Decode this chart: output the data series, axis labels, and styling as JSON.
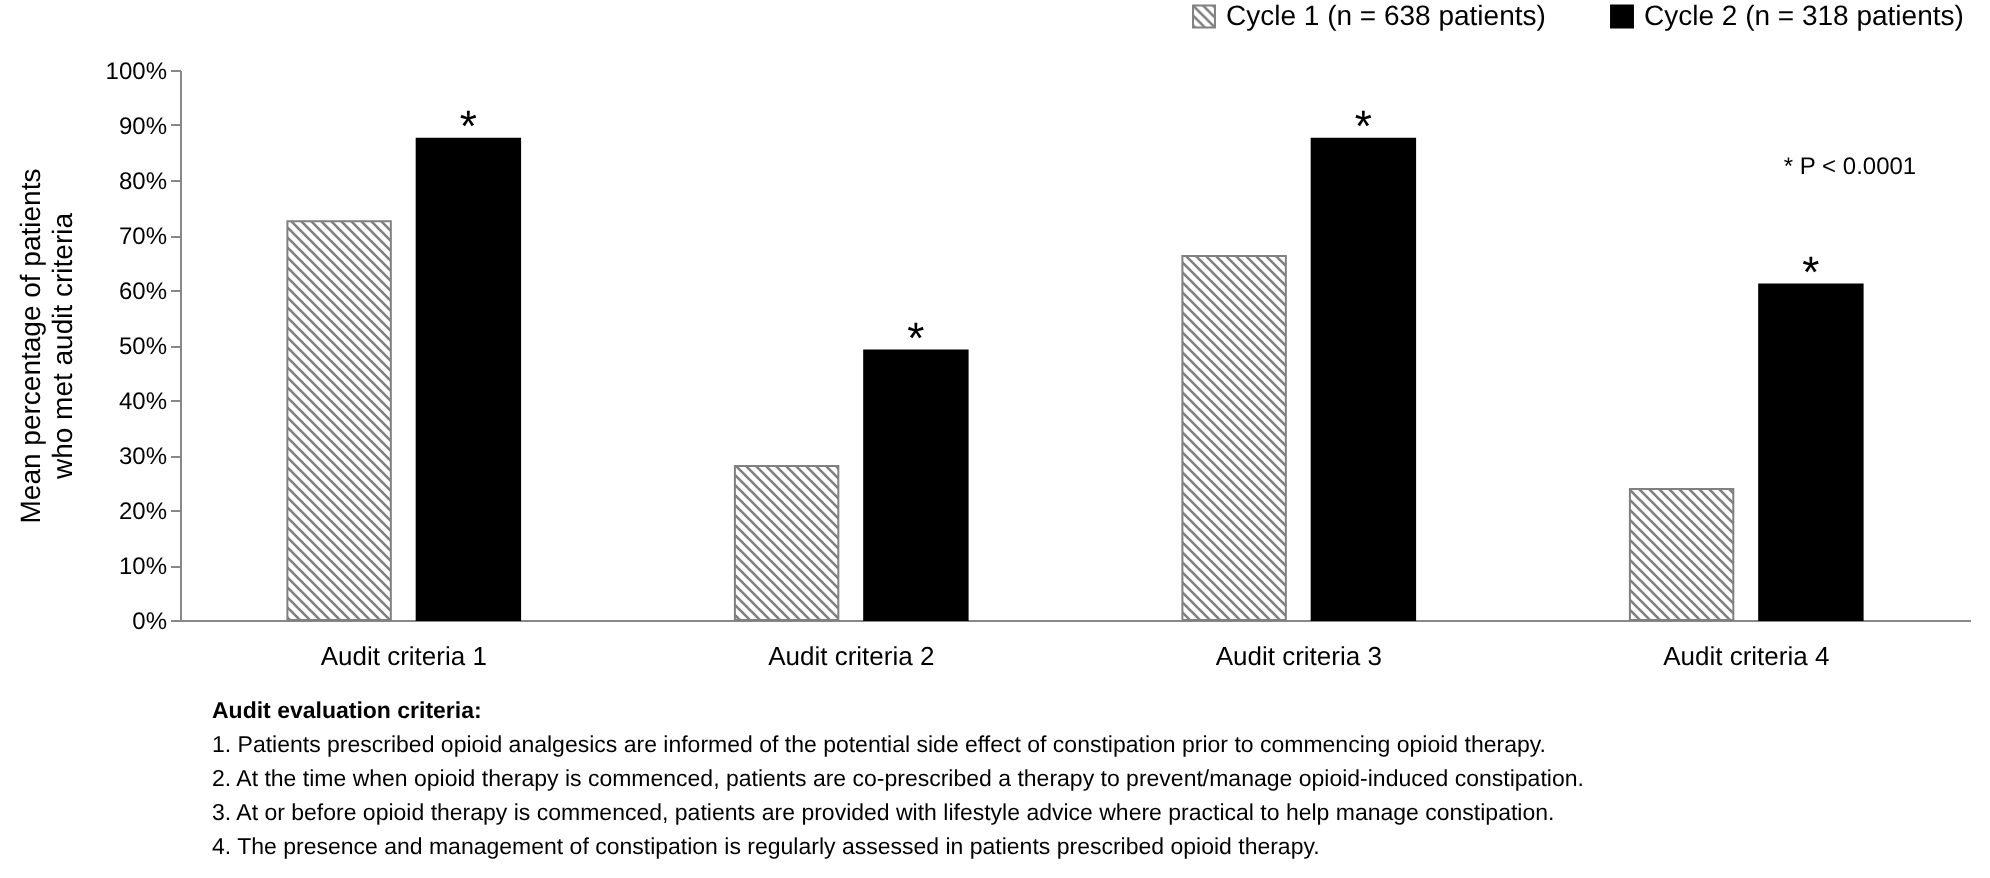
{
  "chart_data": {
    "type": "bar",
    "ylabel": "Mean percentage of patients\nwho met audit criteria",
    "categories": [
      "Audit criteria 1",
      "Audit criteria 2",
      "Audit criteria 3",
      "Audit criteria 4"
    ],
    "series": [
      {
        "name": "Cycle 1 (n = 638 patients)",
        "color": "#808080",
        "values": [
          72.5,
          28,
          66.2,
          23.8
        ]
      },
      {
        "name": "Cycle 2 (n = 318 patients)",
        "color": "#000000",
        "values": [
          87.5,
          49,
          87.5,
          61
        ]
      }
    ],
    "ylim": [
      0,
      100
    ],
    "yticks": [
      {
        "value": 0,
        "label": "0%"
      },
      {
        "value": 10,
        "label": "10%"
      },
      {
        "value": 20,
        "label": "20%"
      },
      {
        "value": 30,
        "label": "30%"
      },
      {
        "value": 40,
        "label": "40%"
      },
      {
        "value": 50,
        "label": "50%"
      },
      {
        "value": 60,
        "label": "60%"
      },
      {
        "value": 70,
        "label": "70%"
      },
      {
        "value": 80,
        "label": "80%"
      },
      {
        "value": 90,
        "label": "90%"
      },
      {
        "value": 100,
        "label": "100%"
      }
    ],
    "legend": "top right",
    "annotations": [
      "*",
      "*",
      "*",
      "*",
      "* P < 0.0001",
      "Audit evaluation criteria:",
      "1. Patients prescribed opioid analgesics are informed of the potential side effect of constipation prior to commencing opioid therapy.",
      "2. At the time when opioid therapy is commenced, patients are co-prescribed a therapy to prevent/manage opioid-induced constipation.",
      "3. At or before opioid therapy is commenced, patients are provided with lifestyle advice where practical to help manage constipation.",
      "4. The presence and management of constipation is regularly assessed in patients prescribed opioid therapy."
    ]
  }
}
